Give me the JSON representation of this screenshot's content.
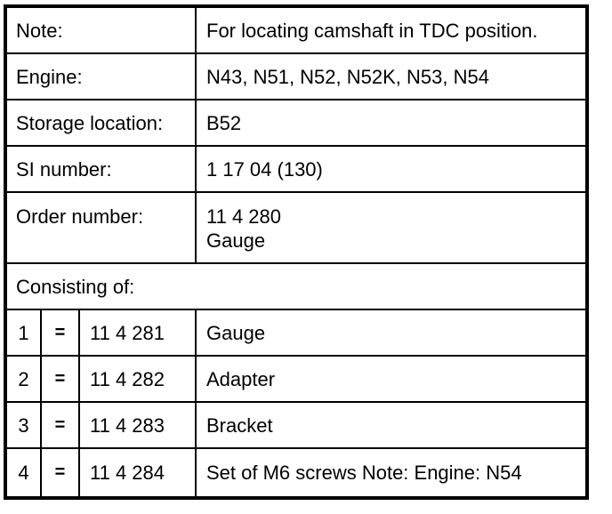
{
  "table": {
    "info_rows": [
      {
        "label": "Note:",
        "value": "For locating camshaft in TDC position."
      },
      {
        "label": "Engine:",
        "value": "N43, N51, N52, N52K, N53, N54"
      },
      {
        "label": "Storage location:",
        "value": "B52"
      },
      {
        "label": "SI number:",
        "value": "1 17 04 (130)"
      }
    ],
    "order_row": {
      "label": "Order number:",
      "value_line1": "11 4 280",
      "value_line2": "Gauge"
    },
    "section_header": "Consisting of:",
    "items": [
      {
        "index": "1",
        "eq": "=",
        "part_number": "11 4 281",
        "description": "Gauge"
      },
      {
        "index": "2",
        "eq": "=",
        "part_number": "11 4 282",
        "description": "Adapter"
      },
      {
        "index": "3",
        "eq": "=",
        "part_number": "11 4 283",
        "description": "Bracket"
      },
      {
        "index": "4",
        "eq": "=",
        "part_number": "11 4 284",
        "description": "Set of M6 screws Note: Engine: N54"
      }
    ],
    "colors": {
      "border": "#000000",
      "background": "#ffffff",
      "text": "#000000"
    }
  }
}
